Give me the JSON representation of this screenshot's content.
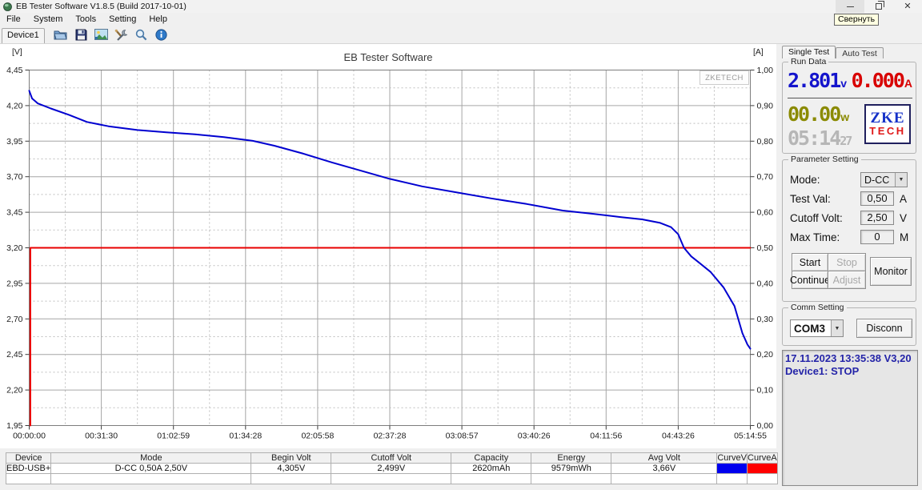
{
  "window": {
    "title": "EB Tester Software V1.8.5 (Build 2017-10-01)",
    "minimize_tooltip": "Свернуть"
  },
  "menu": {
    "items": [
      "File",
      "System",
      "Tools",
      "Setting",
      "Help"
    ]
  },
  "toolbar": {
    "device_tab": "Device1",
    "icons": [
      "open-file",
      "save",
      "export-image",
      "settings-tools",
      "zoom",
      "about-info"
    ]
  },
  "chart": {
    "title": "EB Tester Software",
    "unit_left": "[V]",
    "unit_right": "[A]",
    "watermark": "ZKETECH"
  },
  "chart_data": {
    "type": "line",
    "title": "EB Tester Software",
    "grid": true,
    "x_ticks": [
      "00:00:00",
      "00:31:30",
      "01:02:59",
      "01:34:28",
      "02:05:58",
      "02:37:28",
      "03:08:57",
      "03:40:26",
      "04:11:56",
      "04:43:26",
      "05:14:55"
    ],
    "left_axis": {
      "unit": "[V]",
      "min": 1.95,
      "max": 4.45,
      "step": 0.25,
      "ticks": [
        "4,45",
        "4,20",
        "3,95",
        "3,70",
        "3,45",
        "3,20",
        "2,95",
        "2,70",
        "2,45",
        "2,20",
        "1,95"
      ]
    },
    "right_axis": {
      "unit": "[A]",
      "min": 0.0,
      "max": 1.0,
      "step": 0.1,
      "ticks": [
        "1,00",
        "0,90",
        "0,80",
        "0,70",
        "0,60",
        "0,50",
        "0,40",
        "0,30",
        "0,20",
        "0,10",
        "0,00"
      ]
    },
    "series": [
      {
        "name": "CurveA",
        "axis": "right",
        "color": "#e80000",
        "points": [
          [
            0.0015,
            0.0
          ],
          [
            0.0015,
            0.5
          ],
          [
            1.0,
            0.5
          ]
        ]
      },
      {
        "name": "CurveV",
        "axis": "left",
        "color": "#0000d0",
        "points": [
          [
            0.0,
            4.305
          ],
          [
            0.004,
            4.25
          ],
          [
            0.012,
            4.215
          ],
          [
            0.03,
            4.18
          ],
          [
            0.055,
            4.135
          ],
          [
            0.08,
            4.085
          ],
          [
            0.11,
            4.055
          ],
          [
            0.15,
            4.028
          ],
          [
            0.19,
            4.012
          ],
          [
            0.23,
            3.998
          ],
          [
            0.27,
            3.978
          ],
          [
            0.31,
            3.952
          ],
          [
            0.34,
            3.918
          ],
          [
            0.38,
            3.862
          ],
          [
            0.42,
            3.8
          ],
          [
            0.46,
            3.742
          ],
          [
            0.5,
            3.685
          ],
          [
            0.545,
            3.632
          ],
          [
            0.59,
            3.592
          ],
          [
            0.64,
            3.548
          ],
          [
            0.69,
            3.508
          ],
          [
            0.74,
            3.462
          ],
          [
            0.78,
            3.44
          ],
          [
            0.82,
            3.416
          ],
          [
            0.85,
            3.4
          ],
          [
            0.875,
            3.375
          ],
          [
            0.89,
            3.345
          ],
          [
            0.9,
            3.295
          ],
          [
            0.908,
            3.2
          ],
          [
            0.918,
            3.14
          ],
          [
            0.928,
            3.1
          ],
          [
            0.945,
            3.03
          ],
          [
            0.963,
            2.92
          ],
          [
            0.978,
            2.79
          ],
          [
            0.989,
            2.6
          ],
          [
            0.996,
            2.52
          ],
          [
            1.0,
            2.49
          ]
        ]
      }
    ]
  },
  "right_panel": {
    "tabs": {
      "single": "Single Test",
      "auto": "Auto Test"
    },
    "run_data": {
      "legend": "Run Data",
      "voltage": "2.801",
      "voltage_unit": "v",
      "current": "0.000",
      "current_unit": "A",
      "power": "00.00",
      "power_unit": "w",
      "time": "05:14",
      "time_seconds": "27",
      "logo_top": "ZKE",
      "logo_bottom": "TECH"
    },
    "parameter_setting": {
      "legend": "Parameter Setting",
      "rows": [
        {
          "label": "Mode:",
          "value": "D-CC",
          "unit": ""
        },
        {
          "label": "Test Val:",
          "value": "0,50",
          "unit": "A"
        },
        {
          "label": "Cutoff Volt:",
          "value": "2,50",
          "unit": "V"
        },
        {
          "label": "Max Time:",
          "value": "0",
          "unit": "M"
        }
      ],
      "buttons": {
        "start": "Start",
        "stop": "Stop",
        "continue": "Continue",
        "adjust": "Adjust",
        "monitor": "Monitor"
      }
    },
    "comm_setting": {
      "legend": "Comm Setting",
      "port": "COM3",
      "disconnect": "Disconn"
    },
    "log": {
      "lines": [
        "17.11.2023 13:35:38  V3,20",
        "Device1: STOP"
      ]
    }
  },
  "table": {
    "headers": [
      "Device",
      "Mode",
      "Begin Volt",
      "Cutoff Volt",
      "Capacity",
      "Energy",
      "Avg Volt",
      "CurveV",
      "CurveA"
    ],
    "row": [
      "EBD-USB+",
      "D-CC  0,50A  2,50V",
      "4,305V",
      "2,499V",
      "2620mAh",
      "9579mWh",
      "3,66V"
    ]
  }
}
